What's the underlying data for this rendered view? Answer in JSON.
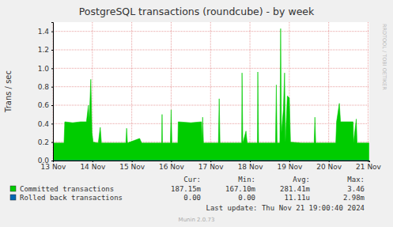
{
  "chart_data": {
    "type": "area",
    "title": "PostgreSQL transactions (roundcube) - by week",
    "y_label": "Trans / sec",
    "side_label": "RRDTOOL / TOBI OETIKER",
    "footer": "Munin 2.0.73",
    "last_update": "Last update: Thu Nov 21 19:00:40 2024",
    "grid": true,
    "xlim": [
      0,
      8.03
    ],
    "xticks": [
      {
        "value": 0,
        "label": "13 Nov"
      },
      {
        "value": 1,
        "label": "14 Nov"
      },
      {
        "value": 2,
        "label": "15 Nov"
      },
      {
        "value": 3,
        "label": "16 Nov"
      },
      {
        "value": 4,
        "label": "17 Nov"
      },
      {
        "value": 5,
        "label": "18 Nov"
      },
      {
        "value": 6,
        "label": "19 Nov"
      },
      {
        "value": 7,
        "label": "20 Nov"
      },
      {
        "value": 8,
        "label": "21 Nov"
      }
    ],
    "ylim": [
      0,
      1.5
    ],
    "yticks": [
      {
        "value": 0,
        "label": "0.0"
      },
      {
        "value": 0.2,
        "label": "0.2"
      },
      {
        "value": 0.4,
        "label": "0.4"
      },
      {
        "value": 0.6,
        "label": "0.6"
      },
      {
        "value": 0.8,
        "label": "0.8"
      },
      {
        "value": 1,
        "label": "1.0"
      },
      {
        "value": 1.2,
        "label": "1.2"
      },
      {
        "value": 1.4,
        "label": "1.4"
      }
    ],
    "stats_headers": [
      "Cur:",
      "Min:",
      "Avg:",
      "Max:"
    ],
    "series": [
      {
        "name": "Committed transactions",
        "color": "#00cc00",
        "x": [
          0,
          0.28,
          0.3,
          0.5,
          0.7,
          0.85,
          0.9,
          0.92,
          0.96,
          0.99,
          1.02,
          1.15,
          1.2,
          1.23,
          1.5,
          1.85,
          1.87,
          1.89,
          2.2,
          2.25,
          2.6,
          2.76,
          2.77,
          2.78,
          2.98,
          3.0,
          3.02,
          3.17,
          3.18,
          3.5,
          3.77,
          3.78,
          3.8,
          3.82,
          4.2,
          4.22,
          4.24,
          4.6,
          4.79,
          4.8,
          4.82,
          4.9,
          4.93,
          5.19,
          5.2,
          5.22,
          5.5,
          5.65,
          5.67,
          5.69,
          5.76,
          5.78,
          5.8,
          5.85,
          5.88,
          5.9,
          5.95,
          6.0,
          6.03,
          6.3,
          6.63,
          6.65,
          6.67,
          7.0,
          7.18,
          7.2,
          7.27,
          7.3,
          7.62,
          7.63,
          7.7,
          7.72,
          8.02
        ],
        "values": [
          0.19,
          0.19,
          0.42,
          0.41,
          0.42,
          0.42,
          0.6,
          0.42,
          0.88,
          0.3,
          0.2,
          0.19,
          0.36,
          0.19,
          0.19,
          0.19,
          0.35,
          0.19,
          0.24,
          0.19,
          0.19,
          0.19,
          0.5,
          0.19,
          0.19,
          0.55,
          0.19,
          0.19,
          0.42,
          0.41,
          0.42,
          0.19,
          0.47,
          0.19,
          0.19,
          0.67,
          0.19,
          0.19,
          0.19,
          0.95,
          0.19,
          0.32,
          0.19,
          0.19,
          0.96,
          0.19,
          0.19,
          0.19,
          0.82,
          0.19,
          0.19,
          1.43,
          0.3,
          0.55,
          0.95,
          0.2,
          0.7,
          0.68,
          0.2,
          0.19,
          0.19,
          0.47,
          0.19,
          0.19,
          0.19,
          0.42,
          0.62,
          0.42,
          0.42,
          0.19,
          0.45,
          0.19,
          0.19
        ],
        "stats": [
          {
            "value": 0.18715,
            "label": "187.15m"
          },
          {
            "value": 0.1671,
            "label": "167.10m"
          },
          {
            "value": 0.28141,
            "label": "281.41m"
          },
          {
            "value": 3.46,
            "label": "3.46"
          }
        ]
      },
      {
        "name": "Rolled back transactions",
        "color": "#0066b3",
        "x": [
          0,
          8.02
        ],
        "values": [
          0,
          0
        ],
        "stats": [
          {
            "value": 0,
            "label": "0.00"
          },
          {
            "value": 0,
            "label": "0.00"
          },
          {
            "value": 1.111e-05,
            "label": "11.11u"
          },
          {
            "value": 0.00298,
            "label": "2.98m"
          }
        ]
      }
    ]
  }
}
